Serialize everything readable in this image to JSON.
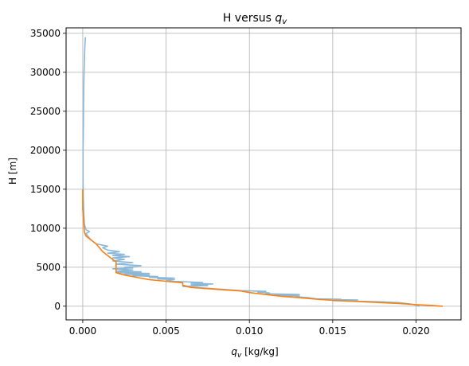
{
  "chart_data": {
    "type": "line",
    "title": "H versus q_v",
    "title_text": "H versus ",
    "title_var": "q",
    "title_sub": "v",
    "xlabel_var": "q",
    "xlabel_sub": "v",
    "xlabel_rest": " [kg/kg]",
    "ylabel": "H [m]",
    "xlim": [
      -0.001,
      0.0227
    ],
    "ylim": [
      -1750,
      35700
    ],
    "grid": true,
    "xticks": [
      0.0,
      0.005,
      0.01,
      0.015,
      0.02
    ],
    "xtick_labels": [
      "0.000",
      "0.005",
      "0.010",
      "0.015",
      "0.020"
    ],
    "yticks": [
      0,
      5000,
      10000,
      15000,
      20000,
      25000,
      30000,
      35000
    ],
    "ytick_labels": [
      "0",
      "5000",
      "10000",
      "15000",
      "20000",
      "25000",
      "30000",
      "35000"
    ],
    "series": [
      {
        "color": "#8ab8d9",
        "width": 1.6,
        "points": [
          [
            0.0202,
            0
          ],
          [
            0.02,
            150
          ],
          [
            0.0196,
            300
          ],
          [
            0.019,
            450
          ],
          [
            0.018,
            560
          ],
          [
            0.0165,
            650
          ],
          [
            0.015,
            720
          ],
          [
            0.016,
            760
          ],
          [
            0.0165,
            800
          ],
          [
            0.015,
            840
          ],
          [
            0.0155,
            880
          ],
          [
            0.014,
            950
          ],
          [
            0.0135,
            1100
          ],
          [
            0.0128,
            1200
          ],
          [
            0.013,
            1300
          ],
          [
            0.0115,
            1400
          ],
          [
            0.013,
            1500
          ],
          [
            0.011,
            1600
          ],
          [
            0.0112,
            1700
          ],
          [
            0.0105,
            1800
          ],
          [
            0.011,
            1900
          ],
          [
            0.0095,
            2000
          ],
          [
            0.0085,
            2150
          ],
          [
            0.0075,
            2300
          ],
          [
            0.0065,
            2450
          ],
          [
            0.006,
            2550
          ],
          [
            0.0075,
            2650
          ],
          [
            0.0065,
            2750
          ],
          [
            0.0078,
            2850
          ],
          [
            0.0065,
            2950
          ],
          [
            0.0072,
            3050
          ],
          [
            0.006,
            3150
          ],
          [
            0.005,
            3250
          ],
          [
            0.0055,
            3400
          ],
          [
            0.0045,
            3500
          ],
          [
            0.0055,
            3600
          ],
          [
            0.004,
            3700
          ],
          [
            0.0045,
            3800
          ],
          [
            0.003,
            3900
          ],
          [
            0.004,
            4000
          ],
          [
            0.0025,
            4100
          ],
          [
            0.004,
            4200
          ],
          [
            0.002,
            4300
          ],
          [
            0.0035,
            4400
          ],
          [
            0.002,
            4500
          ],
          [
            0.003,
            4650
          ],
          [
            0.0018,
            4800
          ],
          [
            0.003,
            4900
          ],
          [
            0.0025,
            5000
          ],
          [
            0.0035,
            5200
          ],
          [
            0.002,
            5400
          ],
          [
            0.003,
            5600
          ],
          [
            0.0018,
            5800
          ],
          [
            0.0025,
            6000
          ],
          [
            0.0018,
            6200
          ],
          [
            0.0028,
            6350
          ],
          [
            0.0018,
            6500
          ],
          [
            0.0025,
            6650
          ],
          [
            0.0015,
            6800
          ],
          [
            0.0022,
            7000
          ],
          [
            0.0015,
            7200
          ],
          [
            0.0012,
            7500
          ],
          [
            0.0015,
            7700
          ],
          [
            0.0008,
            8000
          ],
          [
            0.0005,
            8500
          ],
          [
            0.0003,
            9000
          ],
          [
            0.0002,
            9300
          ],
          [
            0.0004,
            9600
          ],
          [
            0.0002,
            9800
          ],
          [
            0.0001,
            10500
          ],
          [
            6e-05,
            12000
          ],
          [
            3e-05,
            14000
          ],
          [
            2e-05,
            16000
          ],
          [
            2e-05,
            18000
          ],
          [
            2e-05,
            20000
          ],
          [
            3e-05,
            22000
          ],
          [
            4e-05,
            24000
          ],
          [
            5e-05,
            26000
          ],
          [
            6e-05,
            28000
          ],
          [
            8e-05,
            30000
          ],
          [
            0.0001,
            31500
          ],
          [
            0.00012,
            33000
          ],
          [
            0.00016,
            34500
          ]
        ]
      },
      {
        "color": "#ff7f0e",
        "width": 1.6,
        "points": [
          [
            0.0216,
            0
          ],
          [
            0.021,
            100
          ],
          [
            0.02,
            200
          ],
          [
            0.019,
            350
          ],
          [
            0.018,
            450
          ],
          [
            0.017,
            550
          ],
          [
            0.016,
            650
          ],
          [
            0.015,
            750
          ],
          [
            0.014,
            900
          ],
          [
            0.013,
            1100
          ],
          [
            0.012,
            1250
          ],
          [
            0.011,
            1500
          ],
          [
            0.01,
            1750
          ],
          [
            0.0095,
            1950
          ],
          [
            0.0085,
            2100
          ],
          [
            0.0075,
            2250
          ],
          [
            0.0065,
            2400
          ],
          [
            0.006,
            2700
          ],
          [
            0.006,
            3000
          ],
          [
            0.005,
            3200
          ],
          [
            0.004,
            3400
          ],
          [
            0.0035,
            3600
          ],
          [
            0.003,
            3800
          ],
          [
            0.0025,
            4000
          ],
          [
            0.002,
            4300
          ],
          [
            0.002,
            4700
          ],
          [
            0.002,
            5200
          ],
          [
            0.002,
            5700
          ],
          [
            0.0018,
            6000
          ],
          [
            0.0015,
            6500
          ],
          [
            0.0012,
            7000
          ],
          [
            0.001,
            7500
          ],
          [
            0.0008,
            8000
          ],
          [
            0.0005,
            8500
          ],
          [
            0.0002,
            9000
          ],
          [
            0.0001,
            9500
          ],
          [
            0.0,
            12500
          ],
          [
            0.0,
            15000
          ]
        ]
      }
    ]
  }
}
